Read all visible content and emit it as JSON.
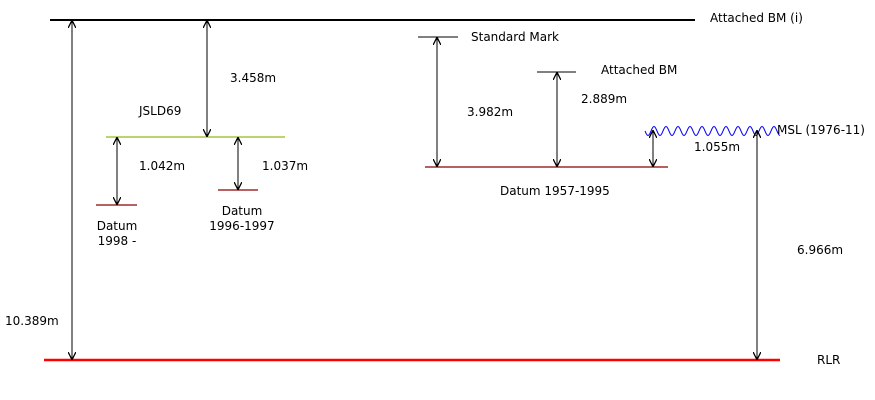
{
  "colors": {
    "line": "#000000",
    "rlr": "#ff0000",
    "datum": "#8b0000",
    "jsld69": "#8fbc1a",
    "msl": "#0000ff"
  },
  "labels": {
    "attached_bm_i": "Attached BM (i)",
    "standard_mark": "Standard Mark",
    "attached_bm": "Attached BM",
    "jsld69": "JSLD69",
    "msl": "MSL (1976-11)",
    "rlr": "RLR",
    "datum_1957_1995": "Datum 1957-1995",
    "datum_1998_line1": "Datum",
    "datum_1998_line2": "1998 -",
    "datum_1996_line1": "Datum",
    "datum_1996_line2": "1996-1997"
  },
  "measurements": {
    "bm_to_rlr": "10.389m",
    "bm_to_jsld69": "3.458m",
    "jsld69_to_datum_1998": "1.042m",
    "jsld69_to_datum_1996": "1.037m",
    "standard_mark_to_datum": "3.982m",
    "attached_bm_to_datum": "2.889m",
    "datum_to_msl": "1.055m",
    "msl_to_rlr": "6.966m"
  }
}
